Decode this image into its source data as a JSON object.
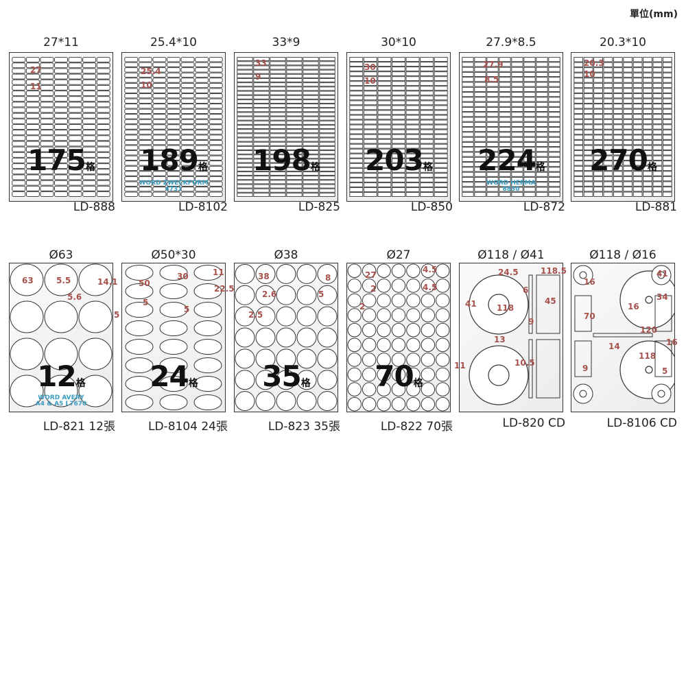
{
  "unit_label": "單位(mm)",
  "count_suffix": "格",
  "colors": {
    "dimension": "#a6514c",
    "compat": "#3a9cc0",
    "outline": "#333333"
  },
  "sheets": [
    {
      "title": "27*11",
      "model": "LD-888",
      "count": "175",
      "dims": [
        "27",
        "11"
      ],
      "compat": []
    },
    {
      "title": "25.4*10",
      "model": "LD-8102",
      "count": "189",
      "dims": [
        "25.4",
        "10"
      ],
      "compat": [
        "WORD  ZWECKFORM",
        "4731"
      ]
    },
    {
      "title": "33*9",
      "model": "LD-825",
      "count": "198",
      "dims": [
        "33",
        "9"
      ],
      "compat": []
    },
    {
      "title": "30*10",
      "model": "LD-850",
      "count": "203",
      "dims": [
        "30",
        "10"
      ],
      "compat": []
    },
    {
      "title": "27.9*8.5",
      "model": "LD-872",
      "count": "224",
      "dims": [
        "27.9",
        "8.5"
      ],
      "compat": [
        "WORD    HERMA",
        "8830"
      ]
    },
    {
      "title": "20.3*10",
      "model": "LD-881",
      "count": "270",
      "dims": [
        "20.3",
        "10"
      ],
      "compat": []
    },
    {
      "title": "Ø63",
      "model": "LD-821 12張",
      "count": "12",
      "dims": [
        "63",
        "5.5",
        "14.1",
        "5.6",
        "5"
      ],
      "compat": [
        "WORD    AVERY",
        "A4 & A5  L7670"
      ]
    },
    {
      "title": "Ø50*30",
      "model": "LD-8104 24張",
      "count": "24",
      "dims": [
        "50",
        "30",
        "11",
        "22.5",
        "5",
        "5"
      ],
      "compat": []
    },
    {
      "title": "Ø38",
      "model": "LD-823 35張",
      "count": "35",
      "dims": [
        "38",
        "2.6",
        "8",
        "5",
        "2.5"
      ],
      "compat": []
    },
    {
      "title": "Ø27",
      "model": "LD-822 70張",
      "count": "70",
      "dims": [
        "27",
        "2",
        "4.5",
        "4.5",
        "2"
      ],
      "compat": []
    },
    {
      "title": "Ø118 / Ø41",
      "model": "LD-820 CD",
      "count": "",
      "dims": [
        "24.5",
        "118.5",
        "6",
        "45",
        "41",
        "118",
        "9",
        "13",
        "11",
        "10.5"
      ],
      "compat": []
    },
    {
      "title": "Ø118 / Ø16",
      "model": "LD-8106 CD",
      "count": "",
      "dims": [
        "16",
        "41",
        "16",
        "34",
        "70",
        "120",
        "16",
        "14",
        "118",
        "9",
        "5"
      ],
      "compat": []
    }
  ]
}
